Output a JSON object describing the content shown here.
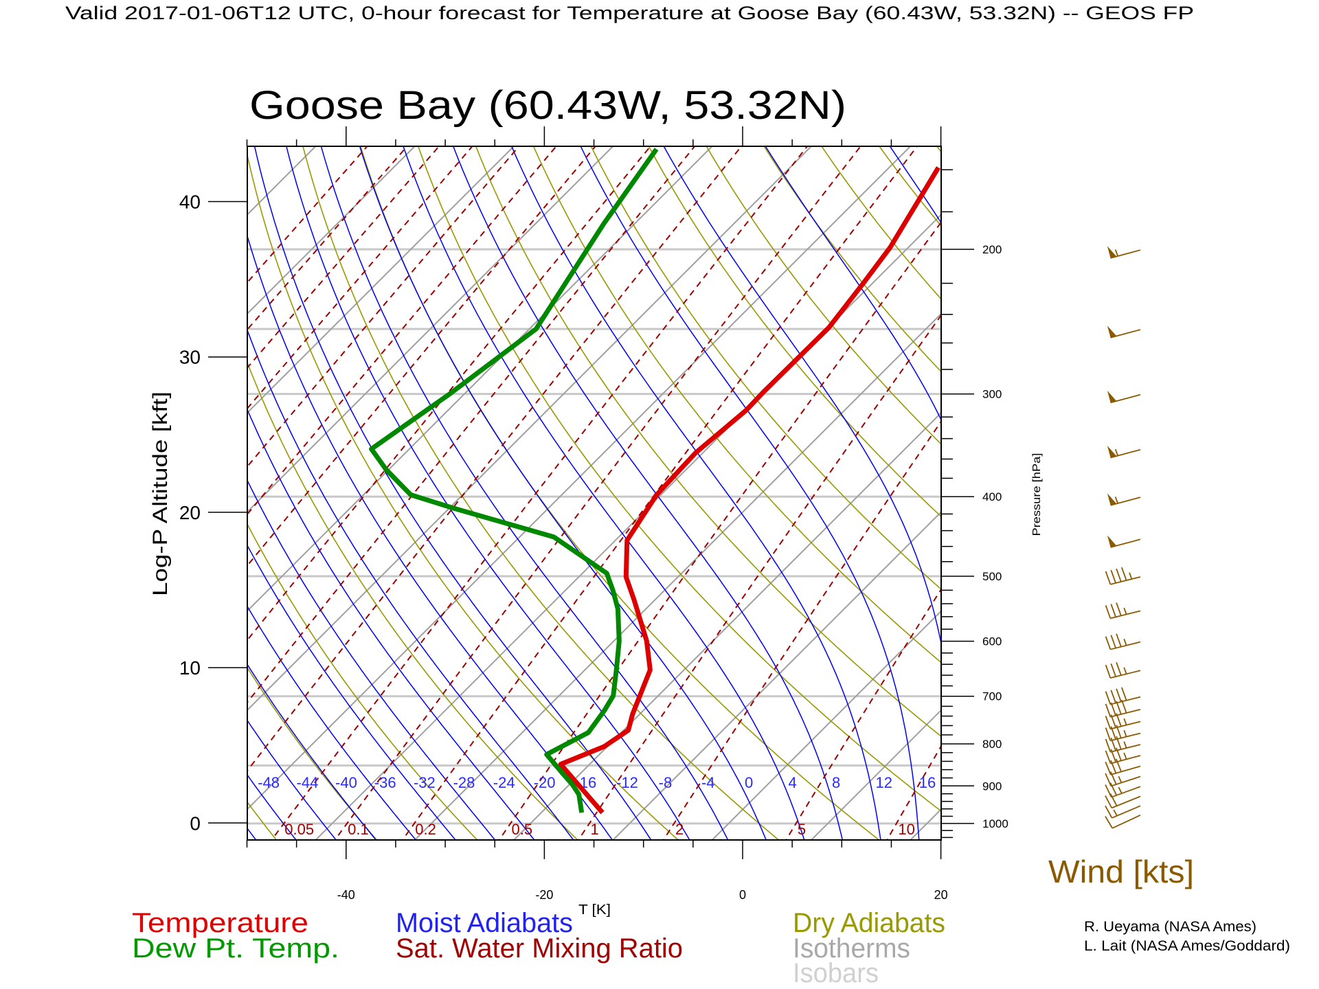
{
  "header": {
    "title": "Valid 2017-01-06T12 UTC, 0-hour forecast for Temperature at Goose Bay (60.43W, 53.32N) -- GEOS FP"
  },
  "chart_data": {
    "type": "line",
    "subtype": "skew-T log-P diagram",
    "title": "Goose Bay (60.43W, 53.32N)",
    "xlabel": "T [K]",
    "ylabel_left": "Log-P Altitude [kft]",
    "ylabel_right": "Pressure [hPa]",
    "temperature_range_c": [
      -50,
      20
    ],
    "pressure_range_hpa": [
      1047,
      150
    ],
    "x_tick_labels": [
      "-40",
      "-20",
      "0",
      "20"
    ],
    "x_tick_values": [
      -40,
      -20,
      0,
      20
    ],
    "altitude_ticks_kft": [
      {
        "value": 0,
        "label": "0"
      },
      {
        "value": 10,
        "label": "10"
      },
      {
        "value": 20,
        "label": "20"
      },
      {
        "value": 30,
        "label": "30"
      },
      {
        "value": 40,
        "label": "40"
      }
    ],
    "pressure_ticks_hpa": [
      {
        "value": 1000,
        "label": "1000"
      },
      {
        "value": 900,
        "label": "900"
      },
      {
        "value": 800,
        "label": "800"
      },
      {
        "value": 700,
        "label": "700"
      },
      {
        "value": 600,
        "label": "600"
      },
      {
        "value": 500,
        "label": "500"
      },
      {
        "value": 400,
        "label": "400"
      },
      {
        "value": 300,
        "label": "300"
      },
      {
        "value": 200,
        "label": "200"
      }
    ],
    "isobars_hpa": [
      1000,
      850,
      700,
      500,
      400,
      300,
      250,
      200
    ],
    "moist_adiabat_labels": [
      {
        "value": -48,
        "label": "-48"
      },
      {
        "value": -44,
        "label": "-44"
      },
      {
        "value": -40,
        "label": "-40"
      },
      {
        "value": -36,
        "label": "-36"
      },
      {
        "value": -32,
        "label": "-32"
      },
      {
        "value": -28,
        "label": "-28"
      },
      {
        "value": -24,
        "label": "-24"
      },
      {
        "value": -20,
        "label": "-20"
      },
      {
        "value": -16,
        "label": "-16"
      },
      {
        "value": -12,
        "label": "-12"
      },
      {
        "value": -8,
        "label": "-8"
      },
      {
        "value": -4,
        "label": "-4"
      },
      {
        "value": 0,
        "label": "0"
      },
      {
        "value": 4,
        "label": "4"
      },
      {
        "value": 8,
        "label": "8"
      },
      {
        "value": 12,
        "label": "12"
      },
      {
        "value": 16,
        "label": "16"
      }
    ],
    "mixing_ratio_labels_gkg": [
      {
        "value": 0.05,
        "label": "0.05"
      },
      {
        "value": 0.1,
        "label": "0.1"
      },
      {
        "value": 0.2,
        "label": "0.2"
      },
      {
        "value": 0.5,
        "label": "0.5"
      },
      {
        "value": 1,
        "label": "1"
      },
      {
        "value": 2,
        "label": "2"
      },
      {
        "value": 5,
        "label": "5"
      },
      {
        "value": 10,
        "label": "10"
      }
    ],
    "series": [
      {
        "name": "Temperature",
        "color": "#dd0000",
        "points_p_hpa_t_c": [
          [
            970,
            -16.9
          ],
          [
            847,
            -26.0
          ],
          [
            806,
            -23.4
          ],
          [
            770,
            -22.6
          ],
          [
            736,
            -23.8
          ],
          [
            650,
            -26.5
          ],
          [
            599,
            -29.8
          ],
          [
            534,
            -35.2
          ],
          [
            501,
            -38.3
          ],
          [
            452,
            -41.9
          ],
          [
            398,
            -43.5
          ],
          [
            354,
            -43.8
          ],
          [
            314,
            -43.0
          ],
          [
            298,
            -43.1
          ],
          [
            249,
            -43.0
          ],
          [
            220,
            -44.0
          ],
          [
            199,
            -44.9
          ],
          [
            159,
            -48.1
          ]
        ]
      },
      {
        "name": "Dew Pt. Temp.",
        "color": "#008800",
        "points_p_hpa_t_c": [
          [
            970,
            -19.0
          ],
          [
            922,
            -21.1
          ],
          [
            896,
            -22.8
          ],
          [
            870,
            -24.8
          ],
          [
            824,
            -28.4
          ],
          [
            775,
            -26.4
          ],
          [
            729,
            -27.0
          ],
          [
            699,
            -27.6
          ],
          [
            648,
            -30.0
          ],
          [
            600,
            -32.5
          ],
          [
            548,
            -35.9
          ],
          [
            521,
            -38.2
          ],
          [
            496,
            -40.6
          ],
          [
            448,
            -49.6
          ],
          [
            413,
            -62.7
          ],
          [
            398,
            -68.3
          ],
          [
            371,
            -73.3
          ],
          [
            350,
            -76.9
          ],
          [
            301,
            -74.6
          ],
          [
            250,
            -72.4
          ],
          [
            186,
            -76.2
          ],
          [
            151,
            -78.4
          ]
        ]
      }
    ],
    "wind": {
      "title": "Wind [kts]",
      "color": "#8b5a00",
      "barbs": [
        {
          "p": 200,
          "speed_kts": 55,
          "dir_deg": 255
        },
        {
          "p": 250,
          "speed_kts": 50,
          "dir_deg": 255
        },
        {
          "p": 300,
          "speed_kts": 50,
          "dir_deg": 255
        },
        {
          "p": 350,
          "speed_kts": 55,
          "dir_deg": 255
        },
        {
          "p": 400,
          "speed_kts": 55,
          "dir_deg": 255
        },
        {
          "p": 450,
          "speed_kts": 50,
          "dir_deg": 255
        },
        {
          "p": 500,
          "speed_kts": 45,
          "dir_deg": 256
        },
        {
          "p": 550,
          "speed_kts": 35,
          "dir_deg": 256
        },
        {
          "p": 600,
          "speed_kts": 35,
          "dir_deg": 256
        },
        {
          "p": 650,
          "speed_kts": 35,
          "dir_deg": 256
        },
        {
          "p": 700,
          "speed_kts": 40,
          "dir_deg": 256
        },
        {
          "p": 725,
          "speed_kts": 40,
          "dir_deg": 256
        },
        {
          "p": 750,
          "speed_kts": 35,
          "dir_deg": 256
        },
        {
          "p": 775,
          "speed_kts": 35,
          "dir_deg": 256
        },
        {
          "p": 800,
          "speed_kts": 35,
          "dir_deg": 256
        },
        {
          "p": 825,
          "speed_kts": 35,
          "dir_deg": 255
        },
        {
          "p": 850,
          "speed_kts": 30,
          "dir_deg": 254
        },
        {
          "p": 875,
          "speed_kts": 25,
          "dir_deg": 252
        },
        {
          "p": 900,
          "speed_kts": 25,
          "dir_deg": 250
        },
        {
          "p": 925,
          "speed_kts": 20,
          "dir_deg": 248
        },
        {
          "p": 950,
          "speed_kts": 15,
          "dir_deg": 247
        },
        {
          "p": 975,
          "speed_kts": 10,
          "dir_deg": 245
        }
      ]
    }
  },
  "legend": {
    "temperature": "Temperature",
    "dewpoint": "Dew Pt. Temp.",
    "moist_adiabats": "Moist Adiabats",
    "mixing_ratio": "Sat. Water Mixing Ratio",
    "dry_adiabats": "Dry Adiabats",
    "isotherms": "Isotherms",
    "isobars": "Isobars",
    "colors": {
      "temperature": "#dd0000",
      "dewpoint": "#008800",
      "moist_adiabats": "#0000ee",
      "mixing_ratio": "#a00000",
      "dry_adiabats": "#999900",
      "isotherms": "#a0a0a0",
      "isobars": "#cccccc"
    }
  },
  "credits": {
    "line1": "R. Ueyama (NASA Ames)",
    "line2": "L. Lait (NASA Ames/Goddard)"
  }
}
